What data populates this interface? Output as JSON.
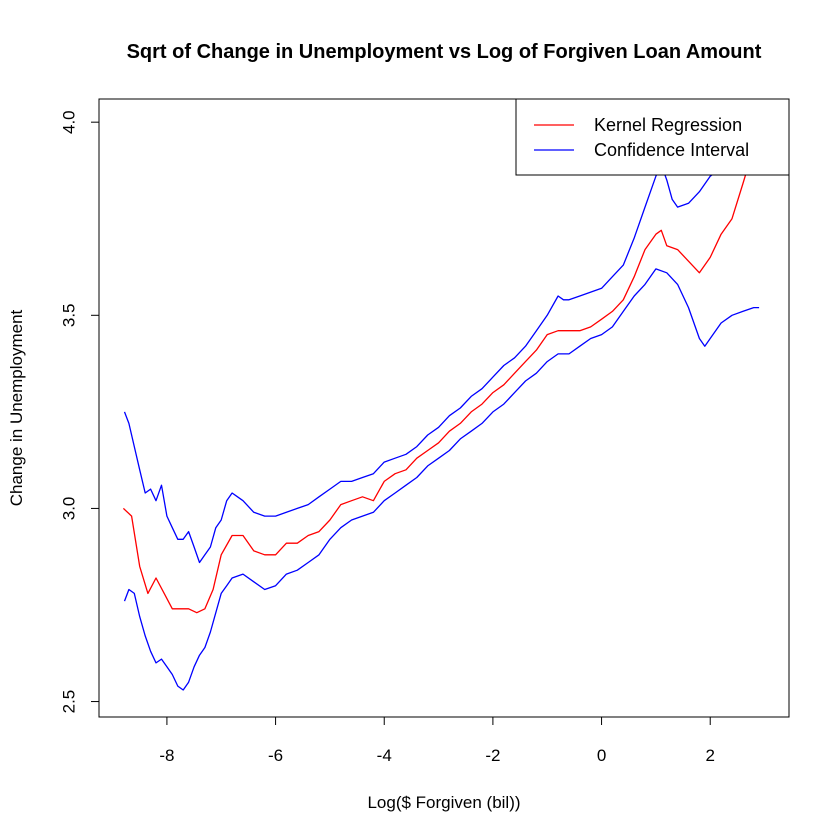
{
  "chart_data": {
    "type": "line",
    "title": "Sqrt of Change in Unemployment vs Log of Forgiven Loan Amount",
    "xlabel": "Log($ Forgiven (bil))",
    "ylabel": "Change in Unemployment",
    "xlim": [
      -9.25,
      3.45
    ],
    "ylim": [
      2.46,
      4.06
    ],
    "x_ticks": [
      -8,
      -6,
      -4,
      -2,
      0,
      2
    ],
    "x_tick_labels": [
      "-8",
      "-6",
      "-4",
      "-2",
      "0",
      "2"
    ],
    "y_ticks": [
      2.5,
      3.0,
      3.5,
      4.0
    ],
    "y_tick_labels": [
      "2.5",
      "3.0",
      "3.5",
      "4.0"
    ],
    "grid": false,
    "legend_position": "top-right",
    "series": [
      {
        "name": "Kernel Regression",
        "color": "#ff0000",
        "x": [
          -8.8,
          -8.65,
          -8.5,
          -8.35,
          -8.2,
          -8.05,
          -7.9,
          -7.75,
          -7.6,
          -7.45,
          -7.3,
          -7.15,
          -7.0,
          -6.8,
          -6.6,
          -6.4,
          -6.2,
          -6.0,
          -5.8,
          -5.6,
          -5.4,
          -5.2,
          -5.0,
          -4.8,
          -4.6,
          -4.4,
          -4.2,
          -4.0,
          -3.8,
          -3.6,
          -3.4,
          -3.2,
          -3.0,
          -2.8,
          -2.6,
          -2.4,
          -2.2,
          -2.0,
          -1.8,
          -1.6,
          -1.4,
          -1.2,
          -1.0,
          -0.8,
          -0.6,
          -0.4,
          -0.2,
          0.0,
          0.2,
          0.4,
          0.6,
          0.8,
          1.0,
          1.1,
          1.2,
          1.4,
          1.6,
          1.8,
          2.0,
          2.2,
          2.4,
          2.6,
          2.75
        ],
        "y": [
          3.0,
          2.98,
          2.85,
          2.78,
          2.82,
          2.78,
          2.74,
          2.74,
          2.74,
          2.73,
          2.74,
          2.79,
          2.88,
          2.93,
          2.93,
          2.89,
          2.88,
          2.88,
          2.91,
          2.91,
          2.93,
          2.94,
          2.97,
          3.01,
          3.02,
          3.03,
          3.02,
          3.07,
          3.09,
          3.1,
          3.13,
          3.15,
          3.17,
          3.2,
          3.22,
          3.25,
          3.27,
          3.3,
          3.32,
          3.35,
          3.38,
          3.41,
          3.45,
          3.46,
          3.46,
          3.46,
          3.47,
          3.49,
          3.51,
          3.54,
          3.6,
          3.67,
          3.71,
          3.72,
          3.68,
          3.67,
          3.64,
          3.61,
          3.65,
          3.71,
          3.75,
          3.84,
          3.91
        ]
      },
      {
        "name": "Confidence Interval",
        "color": "#0000ff",
        "x": [
          -8.78,
          -8.7,
          -8.6,
          -8.5,
          -8.4,
          -8.3,
          -8.2,
          -8.1,
          -8.0,
          -7.9,
          -7.8,
          -7.7,
          -7.6,
          -7.5,
          -7.4,
          -7.3,
          -7.2,
          -7.1,
          -7.0,
          -6.9,
          -6.8,
          -6.7,
          -6.6,
          -6.4,
          -6.2,
          -6.0,
          -5.8,
          -5.6,
          -5.4,
          -5.2,
          -5.0,
          -4.8,
          -4.6,
          -4.4,
          -4.2,
          -4.0,
          -3.8,
          -3.6,
          -3.4,
          -3.2,
          -3.0,
          -2.8,
          -2.6,
          -2.4,
          -2.2,
          -2.0,
          -1.8,
          -1.6,
          -1.4,
          -1.2,
          -1.0,
          -0.8,
          -0.7,
          -0.6,
          -0.4,
          -0.2,
          0.0,
          0.2,
          0.4,
          0.6,
          0.8,
          1.0,
          1.1,
          1.2,
          1.3,
          1.4,
          1.6,
          1.8,
          2.0,
          2.2,
          2.4,
          2.6,
          2.75
        ],
        "y": [
          3.25,
          3.22,
          3.16,
          3.1,
          3.04,
          3.05,
          3.02,
          3.06,
          2.98,
          2.95,
          2.92,
          2.92,
          2.94,
          2.9,
          2.86,
          2.88,
          2.9,
          2.95,
          2.97,
          3.02,
          3.04,
          3.03,
          3.02,
          2.99,
          2.98,
          2.98,
          2.99,
          3.0,
          3.01,
          3.03,
          3.05,
          3.07,
          3.07,
          3.08,
          3.09,
          3.12,
          3.13,
          3.14,
          3.16,
          3.19,
          3.21,
          3.24,
          3.26,
          3.29,
          3.31,
          3.34,
          3.37,
          3.39,
          3.42,
          3.46,
          3.5,
          3.55,
          3.54,
          3.54,
          3.55,
          3.56,
          3.57,
          3.6,
          3.63,
          3.7,
          3.78,
          3.86,
          3.89,
          3.85,
          3.8,
          3.78,
          3.79,
          3.82,
          3.86,
          3.88,
          3.92,
          3.98,
          4.02
        ]
      },
      {
        "name": "Confidence Interval",
        "color": "#0000ff",
        "x": [
          -8.78,
          -8.7,
          -8.6,
          -8.5,
          -8.4,
          -8.3,
          -8.2,
          -8.1,
          -8.0,
          -7.9,
          -7.8,
          -7.7,
          -7.6,
          -7.5,
          -7.4,
          -7.3,
          -7.2,
          -7.1,
          -7.0,
          -6.9,
          -6.8,
          -6.6,
          -6.4,
          -6.2,
          -6.0,
          -5.8,
          -5.6,
          -5.4,
          -5.2,
          -5.0,
          -4.8,
          -4.6,
          -4.4,
          -4.2,
          -4.0,
          -3.8,
          -3.6,
          -3.4,
          -3.2,
          -3.0,
          -2.8,
          -2.6,
          -2.4,
          -2.2,
          -2.0,
          -1.8,
          -1.6,
          -1.4,
          -1.2,
          -1.0,
          -0.8,
          -0.6,
          -0.4,
          -0.2,
          0.0,
          0.2,
          0.4,
          0.6,
          0.8,
          1.0,
          1.2,
          1.4,
          1.6,
          1.8,
          1.9,
          2.0,
          2.2,
          2.4,
          2.6,
          2.8,
          2.9
        ],
        "y": [
          2.76,
          2.79,
          2.78,
          2.72,
          2.67,
          2.63,
          2.6,
          2.61,
          2.59,
          2.57,
          2.54,
          2.53,
          2.55,
          2.59,
          2.62,
          2.64,
          2.68,
          2.73,
          2.78,
          2.8,
          2.82,
          2.83,
          2.81,
          2.79,
          2.8,
          2.83,
          2.84,
          2.86,
          2.88,
          2.92,
          2.95,
          2.97,
          2.98,
          2.99,
          3.02,
          3.04,
          3.06,
          3.08,
          3.11,
          3.13,
          3.15,
          3.18,
          3.2,
          3.22,
          3.25,
          3.27,
          3.3,
          3.33,
          3.35,
          3.38,
          3.4,
          3.4,
          3.42,
          3.44,
          3.45,
          3.47,
          3.51,
          3.55,
          3.58,
          3.62,
          3.61,
          3.58,
          3.52,
          3.44,
          3.42,
          3.44,
          3.48,
          3.5,
          3.51,
          3.52,
          3.52
        ]
      }
    ]
  }
}
